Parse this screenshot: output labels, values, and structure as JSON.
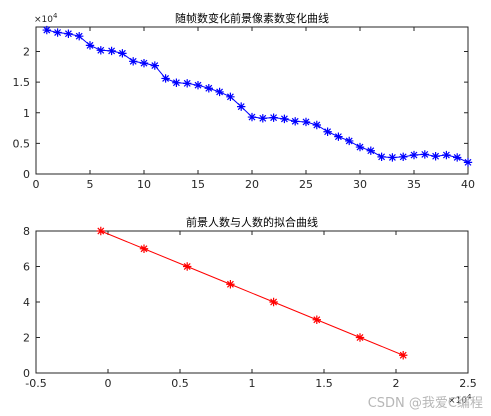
{
  "chart_data": [
    {
      "type": "line",
      "title": "随帧数变化前景像素数变化曲线",
      "xlabel": "",
      "ylabel": "",
      "xlim": [
        0,
        40
      ],
      "ylim": [
        0,
        24000
      ],
      "x_ticks": [
        0,
        5,
        10,
        15,
        20,
        25,
        30,
        35,
        40
      ],
      "y_ticks": [
        0,
        5000,
        10000,
        15000,
        20000
      ],
      "y_tick_labels": [
        "0",
        "0.5",
        "1",
        "1.5",
        "2"
      ],
      "y_multiplier": "×10",
      "y_multiplier_exp": "4",
      "marker": "*",
      "color": "#0000ff",
      "series": [
        {
          "x": [
            1,
            2,
            3,
            4,
            5,
            6,
            7,
            8,
            9,
            10,
            11,
            12,
            13,
            14,
            15,
            16,
            17,
            18,
            19,
            20,
            21,
            22,
            23,
            24,
            25,
            26,
            27,
            28,
            29,
            30,
            31,
            32,
            33,
            34,
            35,
            36,
            37,
            38,
            39,
            40
          ],
          "values": [
            23500,
            23100,
            22900,
            22500,
            21000,
            20200,
            20100,
            19700,
            18400,
            18100,
            17700,
            15600,
            14900,
            14800,
            14500,
            14000,
            13400,
            12600,
            11000,
            9300,
            9100,
            9200,
            9000,
            8600,
            8500,
            8000,
            6900,
            6100,
            5400,
            4400,
            3800,
            2800,
            2700,
            2800,
            3100,
            3200,
            2900,
            3100,
            2700,
            1900
          ]
        }
      ]
    },
    {
      "type": "line",
      "title": "前景人数与人数的拟合曲线",
      "xlabel": "",
      "ylabel": "",
      "xlim": [
        -5000,
        25000
      ],
      "ylim": [
        0,
        8
      ],
      "x_ticks": [
        -5000,
        0,
        5000,
        10000,
        15000,
        20000,
        25000
      ],
      "x_tick_labels": [
        "-0.5",
        "0",
        "0.5",
        "1",
        "1.5",
        "2",
        "2.5"
      ],
      "x_multiplier": "×10",
      "x_multiplier_exp": "4",
      "y_ticks": [
        0,
        2,
        4,
        6,
        8
      ],
      "marker": "*",
      "color": "#ff0000",
      "series": [
        {
          "x": [
            -500,
            2500,
            5500,
            8500,
            11500,
            14500,
            17500,
            20500
          ],
          "values": [
            8,
            7,
            6,
            5,
            4,
            3,
            2,
            1
          ]
        }
      ]
    }
  ],
  "watermark": "CSDN @我爱C编程"
}
